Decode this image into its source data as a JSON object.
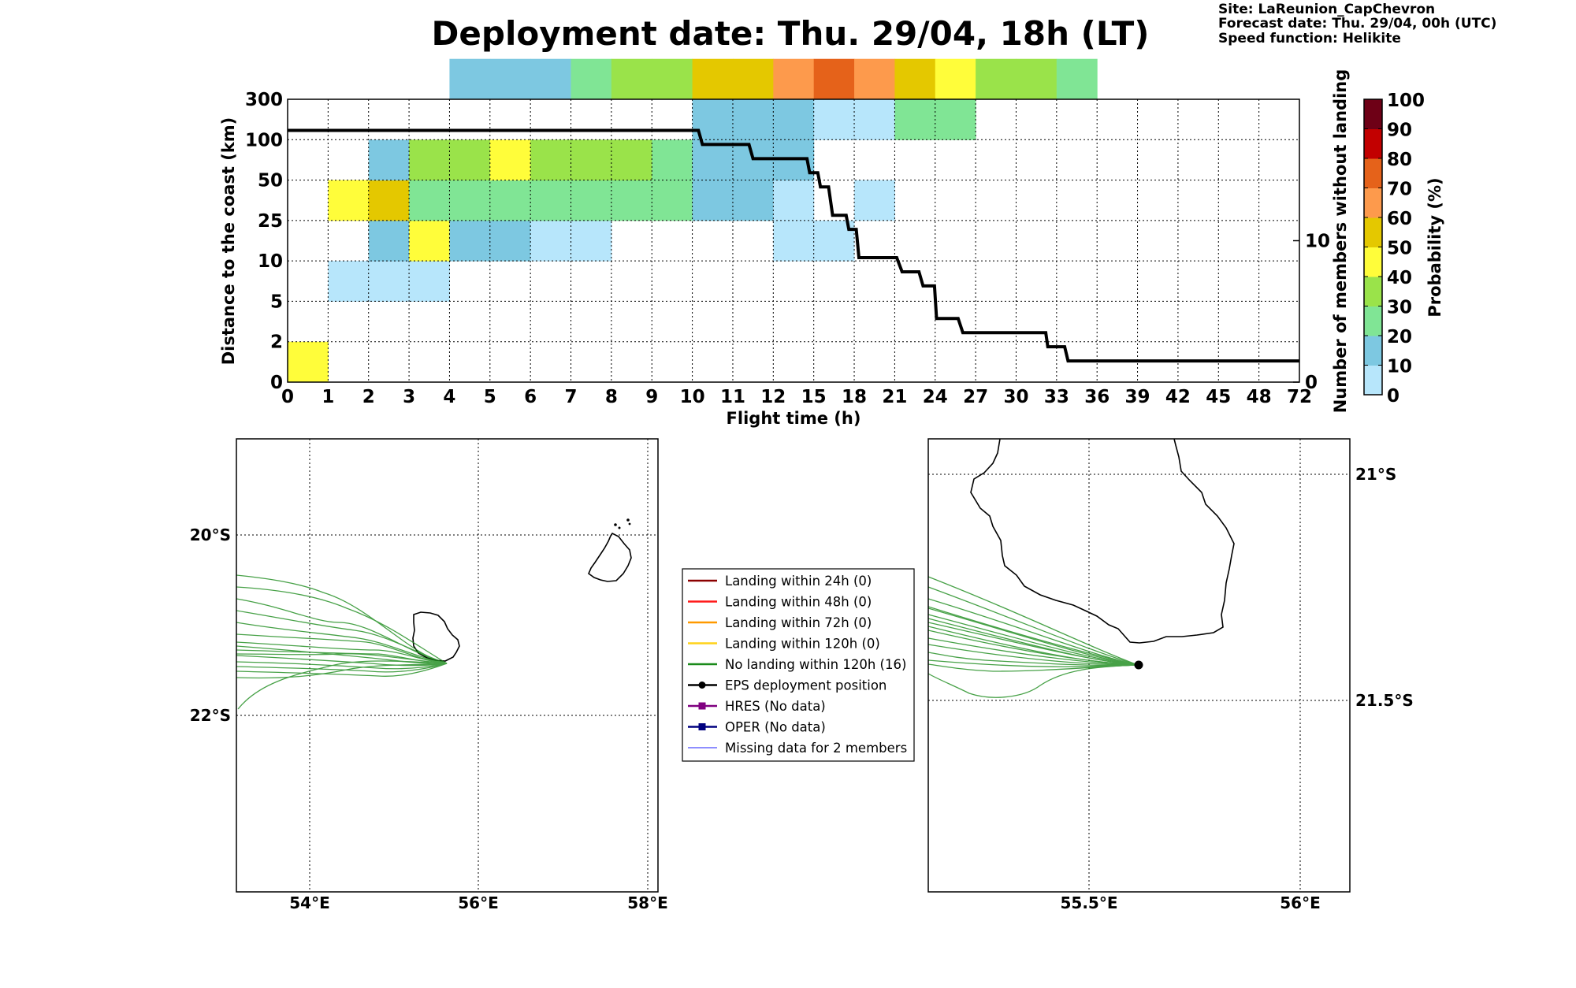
{
  "header": {
    "title": "Deployment date: Thu. 29/04, 18h (LT)",
    "site": "Site: LaReunion_CapChevron",
    "forecast": "Forecast date: Thu. 29/04, 00h (UTC)",
    "speed": "Speed function: Helikite"
  },
  "chart_data": [
    {
      "type": "heatmap",
      "xlabel": "Flight time (h)",
      "ylabel": "Distance to the coast (km)",
      "y2label": "Number of members without landing",
      "colorbar_label": "Probability (%)",
      "x_ticks": [
        "0",
        "1",
        "2",
        "3",
        "4",
        "5",
        "6",
        "7",
        "8",
        "9",
        "10",
        "11",
        "12",
        "15",
        "18",
        "21",
        "24",
        "27",
        "30",
        "33",
        "36",
        "39",
        "42",
        "45",
        "48",
        "72"
      ],
      "x_bins": [
        0,
        1,
        2,
        3,
        4,
        5,
        6,
        7,
        8,
        9,
        10,
        11,
        12,
        15,
        18,
        21,
        24,
        27,
        30,
        33,
        36,
        39,
        42,
        45,
        48,
        72
      ],
      "y_ticks": [
        "0",
        "2",
        "5",
        "10",
        "25",
        "50",
        "100",
        "300"
      ],
      "y_bins": [
        0,
        2,
        5,
        10,
        25,
        50,
        100,
        300
      ],
      "y2_ticks": [
        "0",
        "10"
      ],
      "y2_range": [
        0,
        20
      ],
      "colorbar_ticks": [
        "0",
        "10",
        "20",
        "30",
        "40",
        "50",
        "60",
        "70",
        "80",
        "90",
        "100"
      ],
      "colors": [
        "#b7e6fb",
        "#7dc8e1",
        "#80e595",
        "#9ae34a",
        "#fffd3a",
        "#e4c800",
        "#fd9a4c",
        "#e5621a",
        "#c20000",
        "#6e0016"
      ],
      "cells": [
        [
          0,
          1,
          0,
          45
        ],
        [
          1,
          2,
          2,
          2
        ],
        [
          1,
          2,
          4,
          45
        ],
        [
          2,
          3,
          2,
          2
        ],
        [
          2,
          3,
          3,
          15
        ],
        [
          2,
          3,
          4,
          55
        ],
        [
          2,
          3,
          5,
          15
        ],
        [
          3,
          4,
          2,
          2
        ],
        [
          3,
          4,
          3,
          45
        ],
        [
          3,
          4,
          4,
          25
        ],
        [
          3,
          4,
          5,
          35
        ],
        [
          4,
          5,
          3,
          15
        ],
        [
          4,
          5,
          4,
          25
        ],
        [
          4,
          5,
          5,
          35
        ],
        [
          4,
          5,
          7,
          15
        ],
        [
          5,
          6,
          3,
          15
        ],
        [
          5,
          6,
          4,
          25
        ],
        [
          5,
          6,
          5,
          45
        ],
        [
          5,
          6,
          7,
          15
        ],
        [
          6,
          7,
          3,
          5
        ],
        [
          6,
          7,
          4,
          25
        ],
        [
          6,
          7,
          5,
          35
        ],
        [
          6,
          7,
          7,
          15
        ],
        [
          7,
          8,
          3,
          5
        ],
        [
          7,
          8,
          4,
          25
        ],
        [
          7,
          8,
          5,
          35
        ],
        [
          7,
          8,
          7,
          25
        ],
        [
          8,
          9,
          4,
          25
        ],
        [
          8,
          9,
          5,
          35
        ],
        [
          8,
          9,
          7,
          35
        ],
        [
          9,
          10,
          4,
          25
        ],
        [
          9,
          10,
          5,
          25
        ],
        [
          9,
          10,
          7,
          35
        ],
        [
          10,
          11,
          4,
          15
        ],
        [
          10,
          11,
          5,
          15
        ],
        [
          10,
          11,
          6,
          15
        ],
        [
          10,
          11,
          7,
          55
        ],
        [
          11,
          12,
          4,
          15
        ],
        [
          11,
          12,
          5,
          15
        ],
        [
          11,
          12,
          6,
          15
        ],
        [
          11,
          12,
          7,
          55
        ],
        [
          12,
          13,
          3,
          5
        ],
        [
          12,
          13,
          4,
          5
        ],
        [
          12,
          13,
          5,
          15
        ],
        [
          12,
          13,
          6,
          15
        ],
        [
          12,
          13,
          7,
          65
        ],
        [
          13,
          14,
          3,
          5
        ],
        [
          13,
          14,
          6,
          5
        ],
        [
          13,
          14,
          7,
          75
        ],
        [
          14,
          15,
          4,
          5
        ],
        [
          14,
          15,
          6,
          5
        ],
        [
          14,
          15,
          7,
          65
        ],
        [
          15,
          16,
          6,
          25
        ],
        [
          15,
          16,
          7,
          55
        ],
        [
          16,
          17,
          6,
          25
        ],
        [
          16,
          17,
          7,
          45
        ],
        [
          17,
          18,
          7,
          35
        ],
        [
          18,
          19,
          7,
          35
        ],
        [
          19,
          20,
          7,
          25
        ]
      ],
      "series": [
        {
          "name": "Number of members without landing",
          "x": [
            0,
            10.15,
            10.25,
            11.4,
            11.5,
            14.5,
            14.7,
            15.3,
            15.5,
            16.1,
            16.4,
            17.4,
            17.6,
            18.15,
            18.35,
            21.15,
            21.55,
            22.8,
            23.1,
            23.95,
            24.1,
            25.7,
            26.05,
            32.2,
            32.35,
            33.6,
            33.85,
            72
          ],
          "y": [
            17.8,
            17.8,
            16.8,
            16.8,
            15.8,
            15.8,
            14.8,
            14.8,
            13.8,
            13.8,
            11.8,
            11.8,
            10.8,
            10.8,
            8.8,
            8.8,
            7.8,
            7.8,
            6.8,
            6.8,
            4.5,
            4.5,
            3.5,
            3.5,
            2.5,
            2.5,
            1.5,
            1.5
          ]
        }
      ]
    },
    {
      "type": "line",
      "map": "regional",
      "x_ticks": [
        "54°E",
        "56°E",
        "58°E"
      ],
      "y_ticks": [
        "20°S",
        "22°S"
      ],
      "xlim": [
        53.13,
        58.13
      ],
      "ylim": [
        -23.95,
        -18.95
      ]
    },
    {
      "type": "line",
      "map": "zoom",
      "x_ticks": [
        "55.5°E",
        "56°E"
      ],
      "y_ticks": [
        "21°S",
        "21.5°S"
      ],
      "xlim": [
        55.1,
        56.1
      ],
      "ylim": [
        -21.93,
        -20.93
      ]
    }
  ],
  "legend": {
    "items": [
      {
        "label": "Landing within 24h (0)",
        "color": "#8b0000",
        "marker": "none"
      },
      {
        "label": "Landing within 48h (0)",
        "color": "#ff1a1a",
        "marker": "none"
      },
      {
        "label": "Landing within 72h (0)",
        "color": "#ff9900",
        "marker": "none"
      },
      {
        "label": "Landing within 120h (0)",
        "color": "#ffd21a",
        "marker": "none"
      },
      {
        "label": "No landing within 120h (16)",
        "color": "#1a8a1a",
        "marker": "none"
      },
      {
        "label": "EPS deployment position",
        "color": "#000000",
        "marker": "circle"
      },
      {
        "label": "HRES (No data)",
        "color": "#800080",
        "marker": "square"
      },
      {
        "label": "OPER (No data)",
        "color": "#00007f",
        "marker": "square"
      },
      {
        "label": "Missing data for 2 members",
        "color": "#4a4aff",
        "marker": "thin"
      }
    ]
  }
}
